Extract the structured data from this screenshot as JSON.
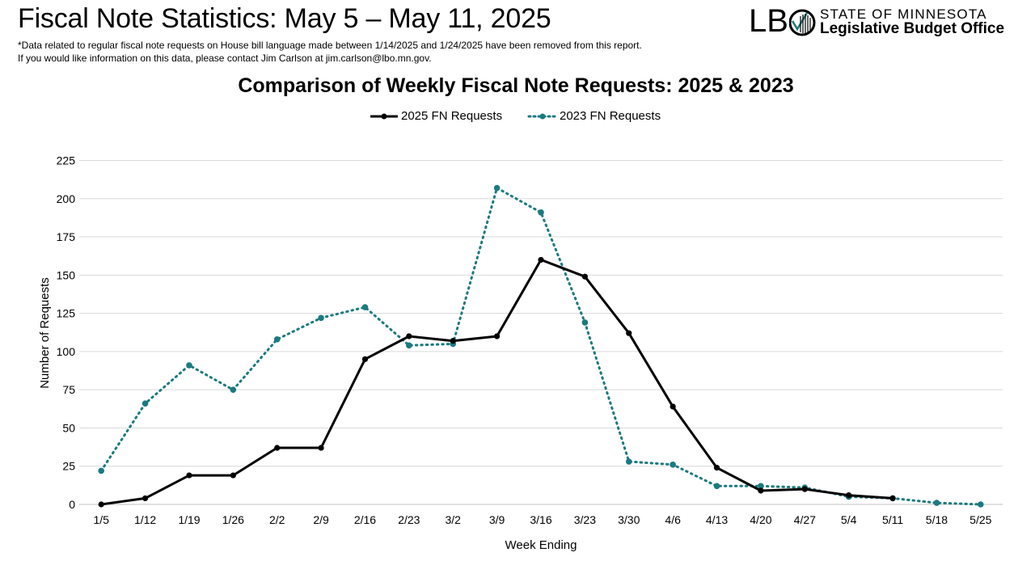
{
  "header": {
    "title": "Fiscal Note Statistics: May 5 – May 11, 2025",
    "note_line1": "*Data related to regular fiscal note requests on House bill language made between 1/14/2025 and 1/24/2025 have been removed from this report.",
    "note_line2": "If you would like information on this data, please contact Jim Carlson at jim.carlson@lbo.mn.gov."
  },
  "logo": {
    "initials": "LB",
    "line1": "STATE OF MINNESOTA",
    "line2": "Legislative Budget Office"
  },
  "colors": {
    "series_2025": "#000000",
    "series_2023": "#1b7a80",
    "grid": "#d9d9d9"
  },
  "chart_data": {
    "type": "line",
    "title": "Comparison of Weekly Fiscal Note Requests: 2025 & 2023",
    "xlabel": "Week Ending",
    "ylabel": "Number of Requests",
    "ylim": [
      0,
      225
    ],
    "yticks": [
      0,
      25,
      50,
      75,
      100,
      125,
      150,
      175,
      200,
      225
    ],
    "grid": true,
    "legend_position": "top-center",
    "categories": [
      "1/5",
      "1/12",
      "1/19",
      "1/26",
      "2/2",
      "2/9",
      "2/16",
      "2/23",
      "3/2",
      "3/9",
      "3/16",
      "3/23",
      "3/30",
      "4/6",
      "4/13",
      "4/20",
      "4/27",
      "5/4",
      "5/11",
      "5/18",
      "5/25"
    ],
    "series": [
      {
        "name": "2025 FN Requests",
        "style": "solid",
        "values": [
          0,
          4,
          19,
          19,
          37,
          37,
          95,
          110,
          107,
          110,
          160,
          149,
          112,
          64,
          24,
          9,
          10,
          6,
          4,
          null,
          null
        ]
      },
      {
        "name": "2023 FN Requests",
        "style": "dotted",
        "values": [
          22,
          66,
          91,
          75,
          108,
          122,
          129,
          104,
          105,
          207,
          191,
          119,
          28,
          26,
          12,
          12,
          11,
          5,
          4,
          1,
          0
        ]
      }
    ]
  }
}
